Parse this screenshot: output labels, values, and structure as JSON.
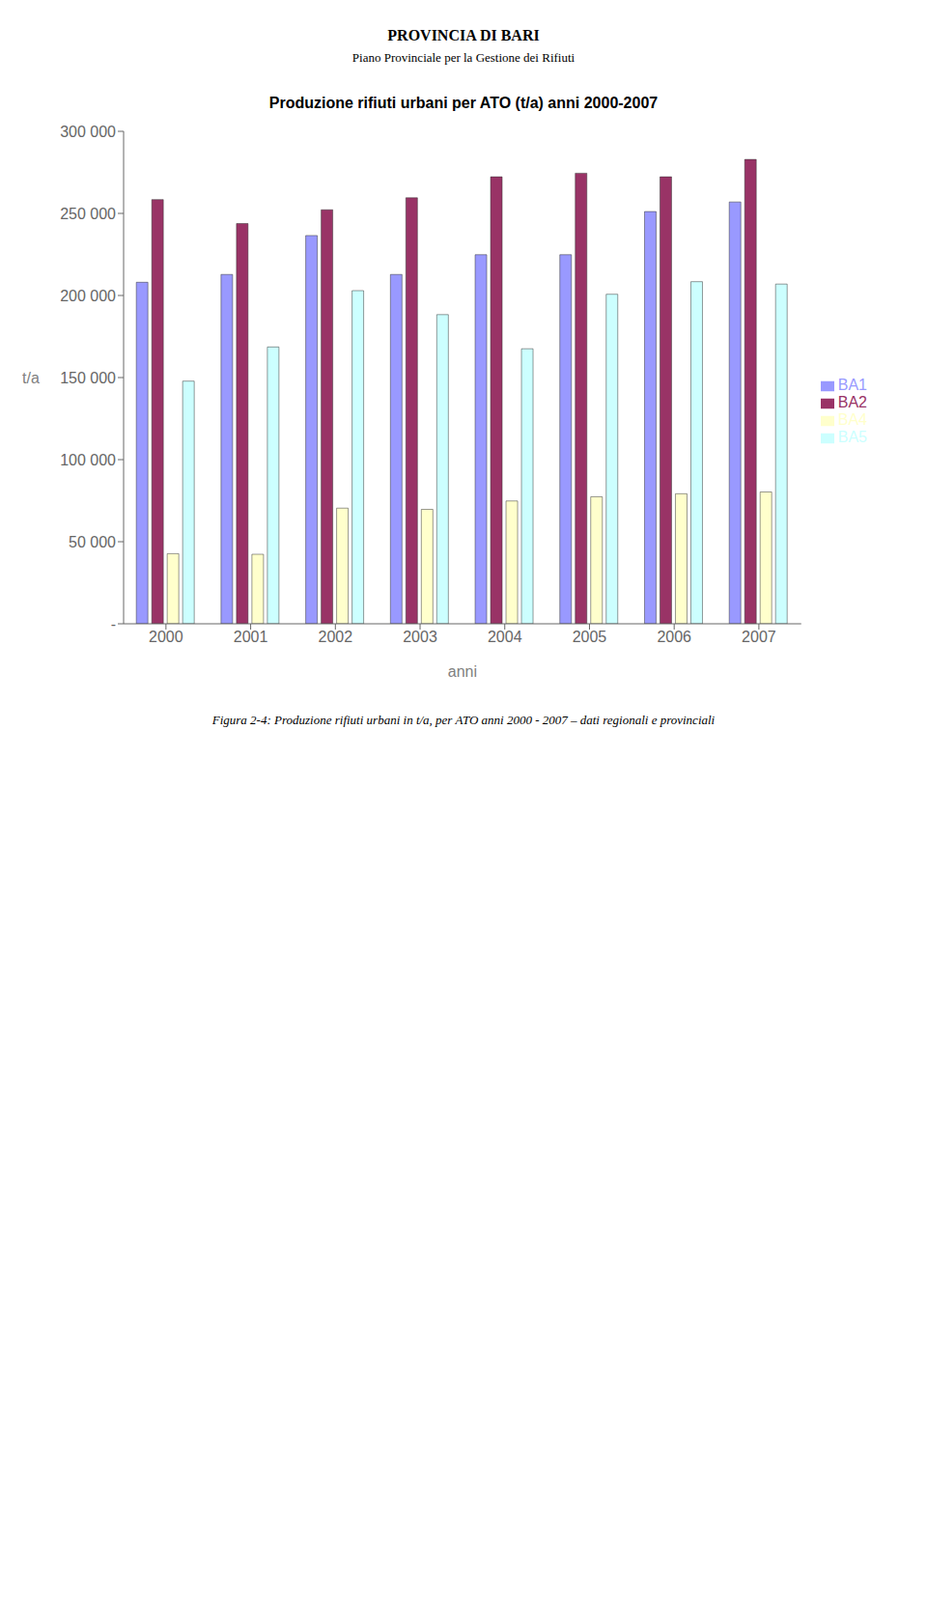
{
  "chart_data": {
    "type": "bar",
    "title": "Produzione rifiuti urbani per ATO (t/a) anni 2000-2007",
    "xlabel": "anni",
    "ylabel": "t/a",
    "categories": [
      "2000",
      "2001",
      "2002",
      "2003",
      "2004",
      "2005",
      "2006",
      "2007"
    ],
    "series": [
      {
        "name": "BA1",
        "color": "#9999FF",
        "values": [
          208050,
          212795,
          236520,
          212795,
          224840,
          224840,
          251120,
          256960
        ]
      },
      {
        "name": "BA2",
        "color": "#993366",
        "values": [
          258420,
          243820,
          252215,
          259515,
          272290,
          274480,
          272290,
          282875
        ]
      },
      {
        "name": "BA4",
        "color": "#FFFFCC",
        "values": [
          42705,
          42340,
          70445,
          69715,
          74825,
          77380,
          79205,
          80300
        ]
      },
      {
        "name": "BA5",
        "color": "#CCFFFF",
        "values": [
          147825,
          168630,
          202940,
          188340,
          167535,
          200750,
          208415,
          206955
        ]
      }
    ],
    "ylim": [
      0,
      300000
    ],
    "yticks": [
      {
        "value": 0,
        "label": "-"
      },
      {
        "value": 50000,
        "label": "50 000"
      },
      {
        "value": 100000,
        "label": "100 000"
      },
      {
        "value": 150000,
        "label": "150 000"
      },
      {
        "value": 200000,
        "label": "200 000"
      },
      {
        "value": 250000,
        "label": "250 000"
      },
      {
        "value": 300000,
        "label": "300 000"
      }
    ],
    "grid": false,
    "legend": "right",
    "annotations": [
      "PROVINCIA DI BARI",
      "Piano Provinciale per la Gestione dei Rifiuti",
      "Figura 2-4: Produzione rifiuti urbani in t/a, per ATO anni 2000 - 2007 – dati regionali e provinciali"
    ]
  }
}
